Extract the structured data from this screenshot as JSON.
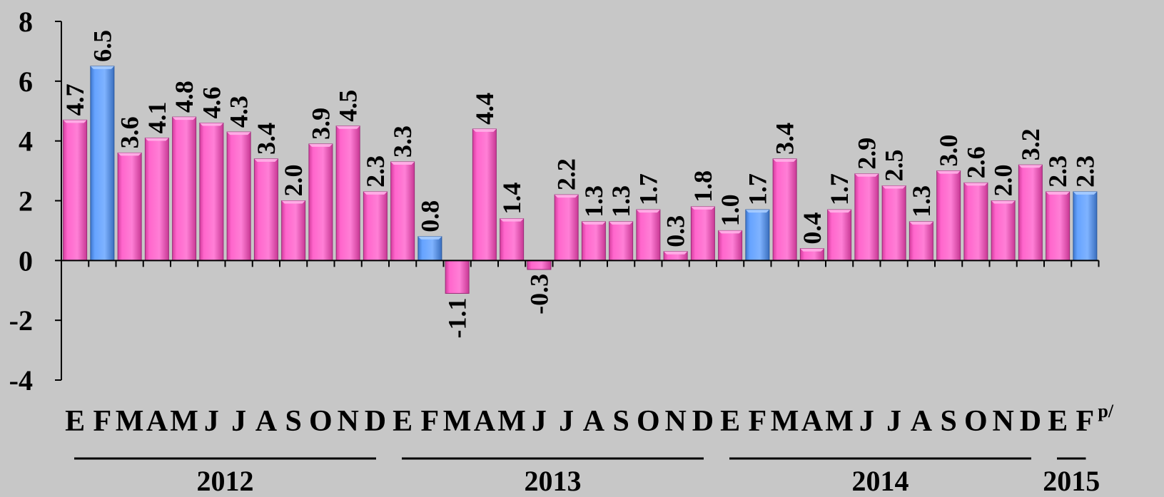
{
  "chart_data": {
    "type": "bar",
    "categories": [
      "E",
      "F",
      "M",
      "A",
      "M",
      "J",
      "J",
      "A",
      "S",
      "O",
      "N",
      "D",
      "E",
      "F",
      "M",
      "A",
      "M",
      "J",
      "J",
      "A",
      "S",
      "O",
      "N",
      "D",
      "E",
      "F",
      "M",
      "A",
      "M",
      "J",
      "J",
      "A",
      "S",
      "O",
      "N",
      "D",
      "E",
      "F"
    ],
    "values": [
      4.7,
      6.5,
      3.6,
      4.1,
      4.8,
      4.6,
      4.3,
      3.4,
      2.0,
      3.9,
      4.5,
      2.3,
      3.3,
      0.8,
      -1.1,
      4.4,
      1.4,
      -0.3,
      2.2,
      1.3,
      1.3,
      1.7,
      0.3,
      1.8,
      1.0,
      1.7,
      3.4,
      0.4,
      1.7,
      2.9,
      2.5,
      1.3,
      3.0,
      2.6,
      2.0,
      3.2,
      2.3,
      2.3
    ],
    "value_labels": [
      "4.7",
      "6.5",
      "3.6",
      "4.1",
      "4.8",
      "4.6",
      "4.3",
      "3.4",
      "2.0",
      "3.9",
      "4.5",
      "2.3",
      "3.3",
      "0.8",
      "-1.1",
      "4.4",
      "1.4",
      "-0.3",
      "2.2",
      "1.3",
      "1.3",
      "1.7",
      "0.3",
      "1.8",
      "1.0",
      "1.7",
      "3.4",
      "0.4",
      "1.7",
      "2.9",
      "2.5",
      "1.3",
      "3.0",
      "2.6",
      "2.0",
      "3.2",
      "2.3",
      "2.3"
    ],
    "highlighted": [
      1,
      13,
      25,
      37
    ],
    "year_groups": [
      {
        "label": "2012",
        "start": 0,
        "end": 11
      },
      {
        "label": "2013",
        "start": 12,
        "end": 23
      },
      {
        "label": "2014",
        "start": 24,
        "end": 35
      },
      {
        "label": "2015",
        "start": 36,
        "end": 37
      }
    ],
    "last_label_superscript": "p/",
    "ylim": [
      -4,
      8
    ],
    "yticks": [
      8,
      6,
      4,
      2,
      0,
      -2,
      -4
    ],
    "title": "",
    "xlabel": "",
    "ylabel": "",
    "grid": false,
    "legend": "none",
    "colors": {
      "bar": "#ff66cc",
      "highlight": "#66a3ff",
      "background": "#c7c7c7",
      "axis": "#000000"
    }
  }
}
